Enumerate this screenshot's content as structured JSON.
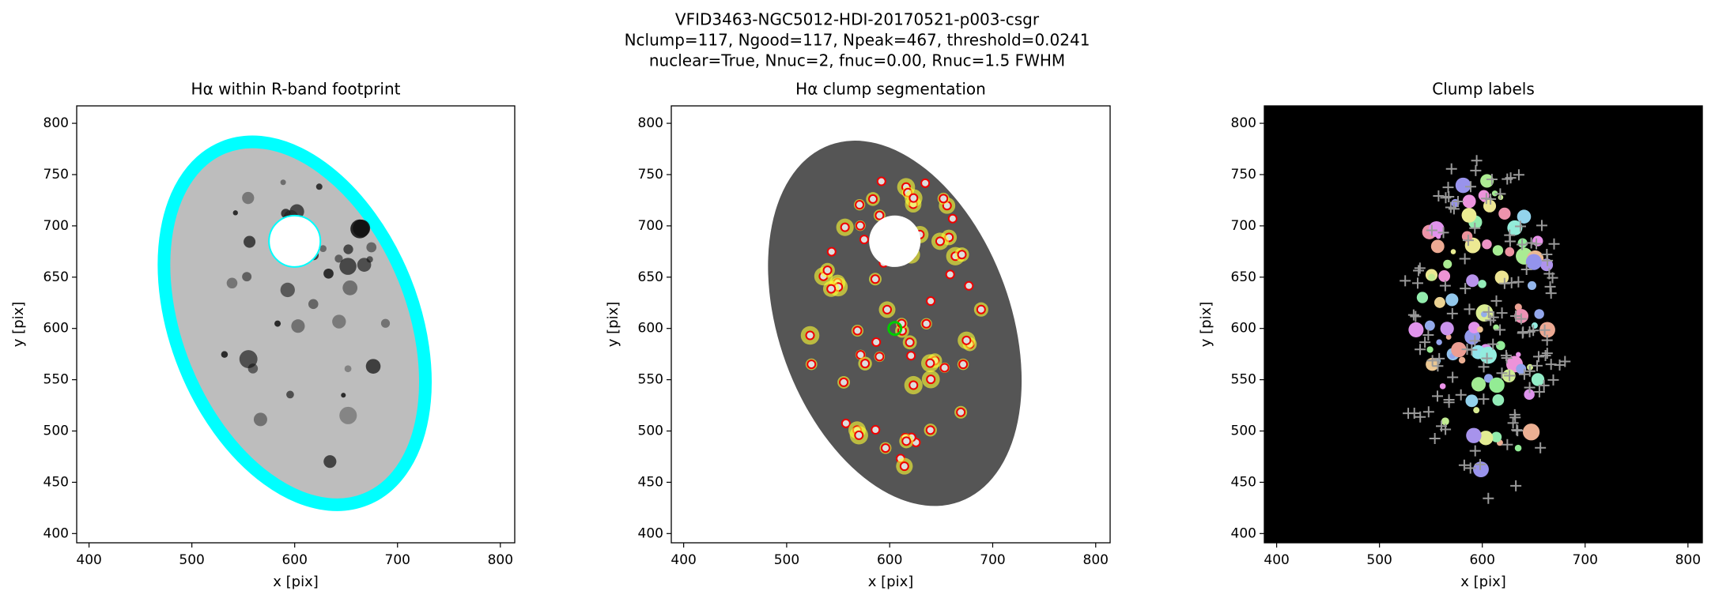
{
  "title": [
    "VFID3463-NGC5012-HDI-20170521-p003-csgr",
    "Nclump=117, Ngood=117, Npeak=467, threshold=0.0241",
    "nuclear=True, Nnuc=2, fnuc=0.00, Rnuc=1.5 FWHM"
  ],
  "chart_data": [
    {
      "type": "image",
      "title": "Hα within R-band footprint",
      "xlabel": "x [pix]",
      "ylabel": "y [pix]",
      "xlim": [
        388,
        814
      ],
      "ylim": [
        391,
        817
      ],
      "xticks": [
        400,
        500,
        600,
        700,
        800
      ],
      "yticks": [
        400,
        450,
        500,
        550,
        600,
        650,
        700,
        750,
        800
      ]
    },
    {
      "type": "image",
      "title": "Hα clump segmentation",
      "xlabel": "x [pix]",
      "ylabel": "y [pix]",
      "xlim": [
        388,
        814
      ],
      "ylim": [
        391,
        817
      ],
      "xticks": [
        400,
        500,
        600,
        700,
        800
      ],
      "yticks": [
        400,
        450,
        500,
        550,
        600,
        650,
        700,
        750,
        800
      ]
    },
    {
      "type": "image",
      "title": "Clump labels",
      "xlabel": "x [pix]",
      "ylabel": "y [pix]",
      "xlim": [
        388,
        814
      ],
      "ylim": [
        391,
        817
      ],
      "xticks": [
        400,
        500,
        600,
        700,
        800
      ],
      "yticks": [
        400,
        450,
        500,
        550,
        600,
        650,
        700,
        750,
        800
      ]
    }
  ]
}
